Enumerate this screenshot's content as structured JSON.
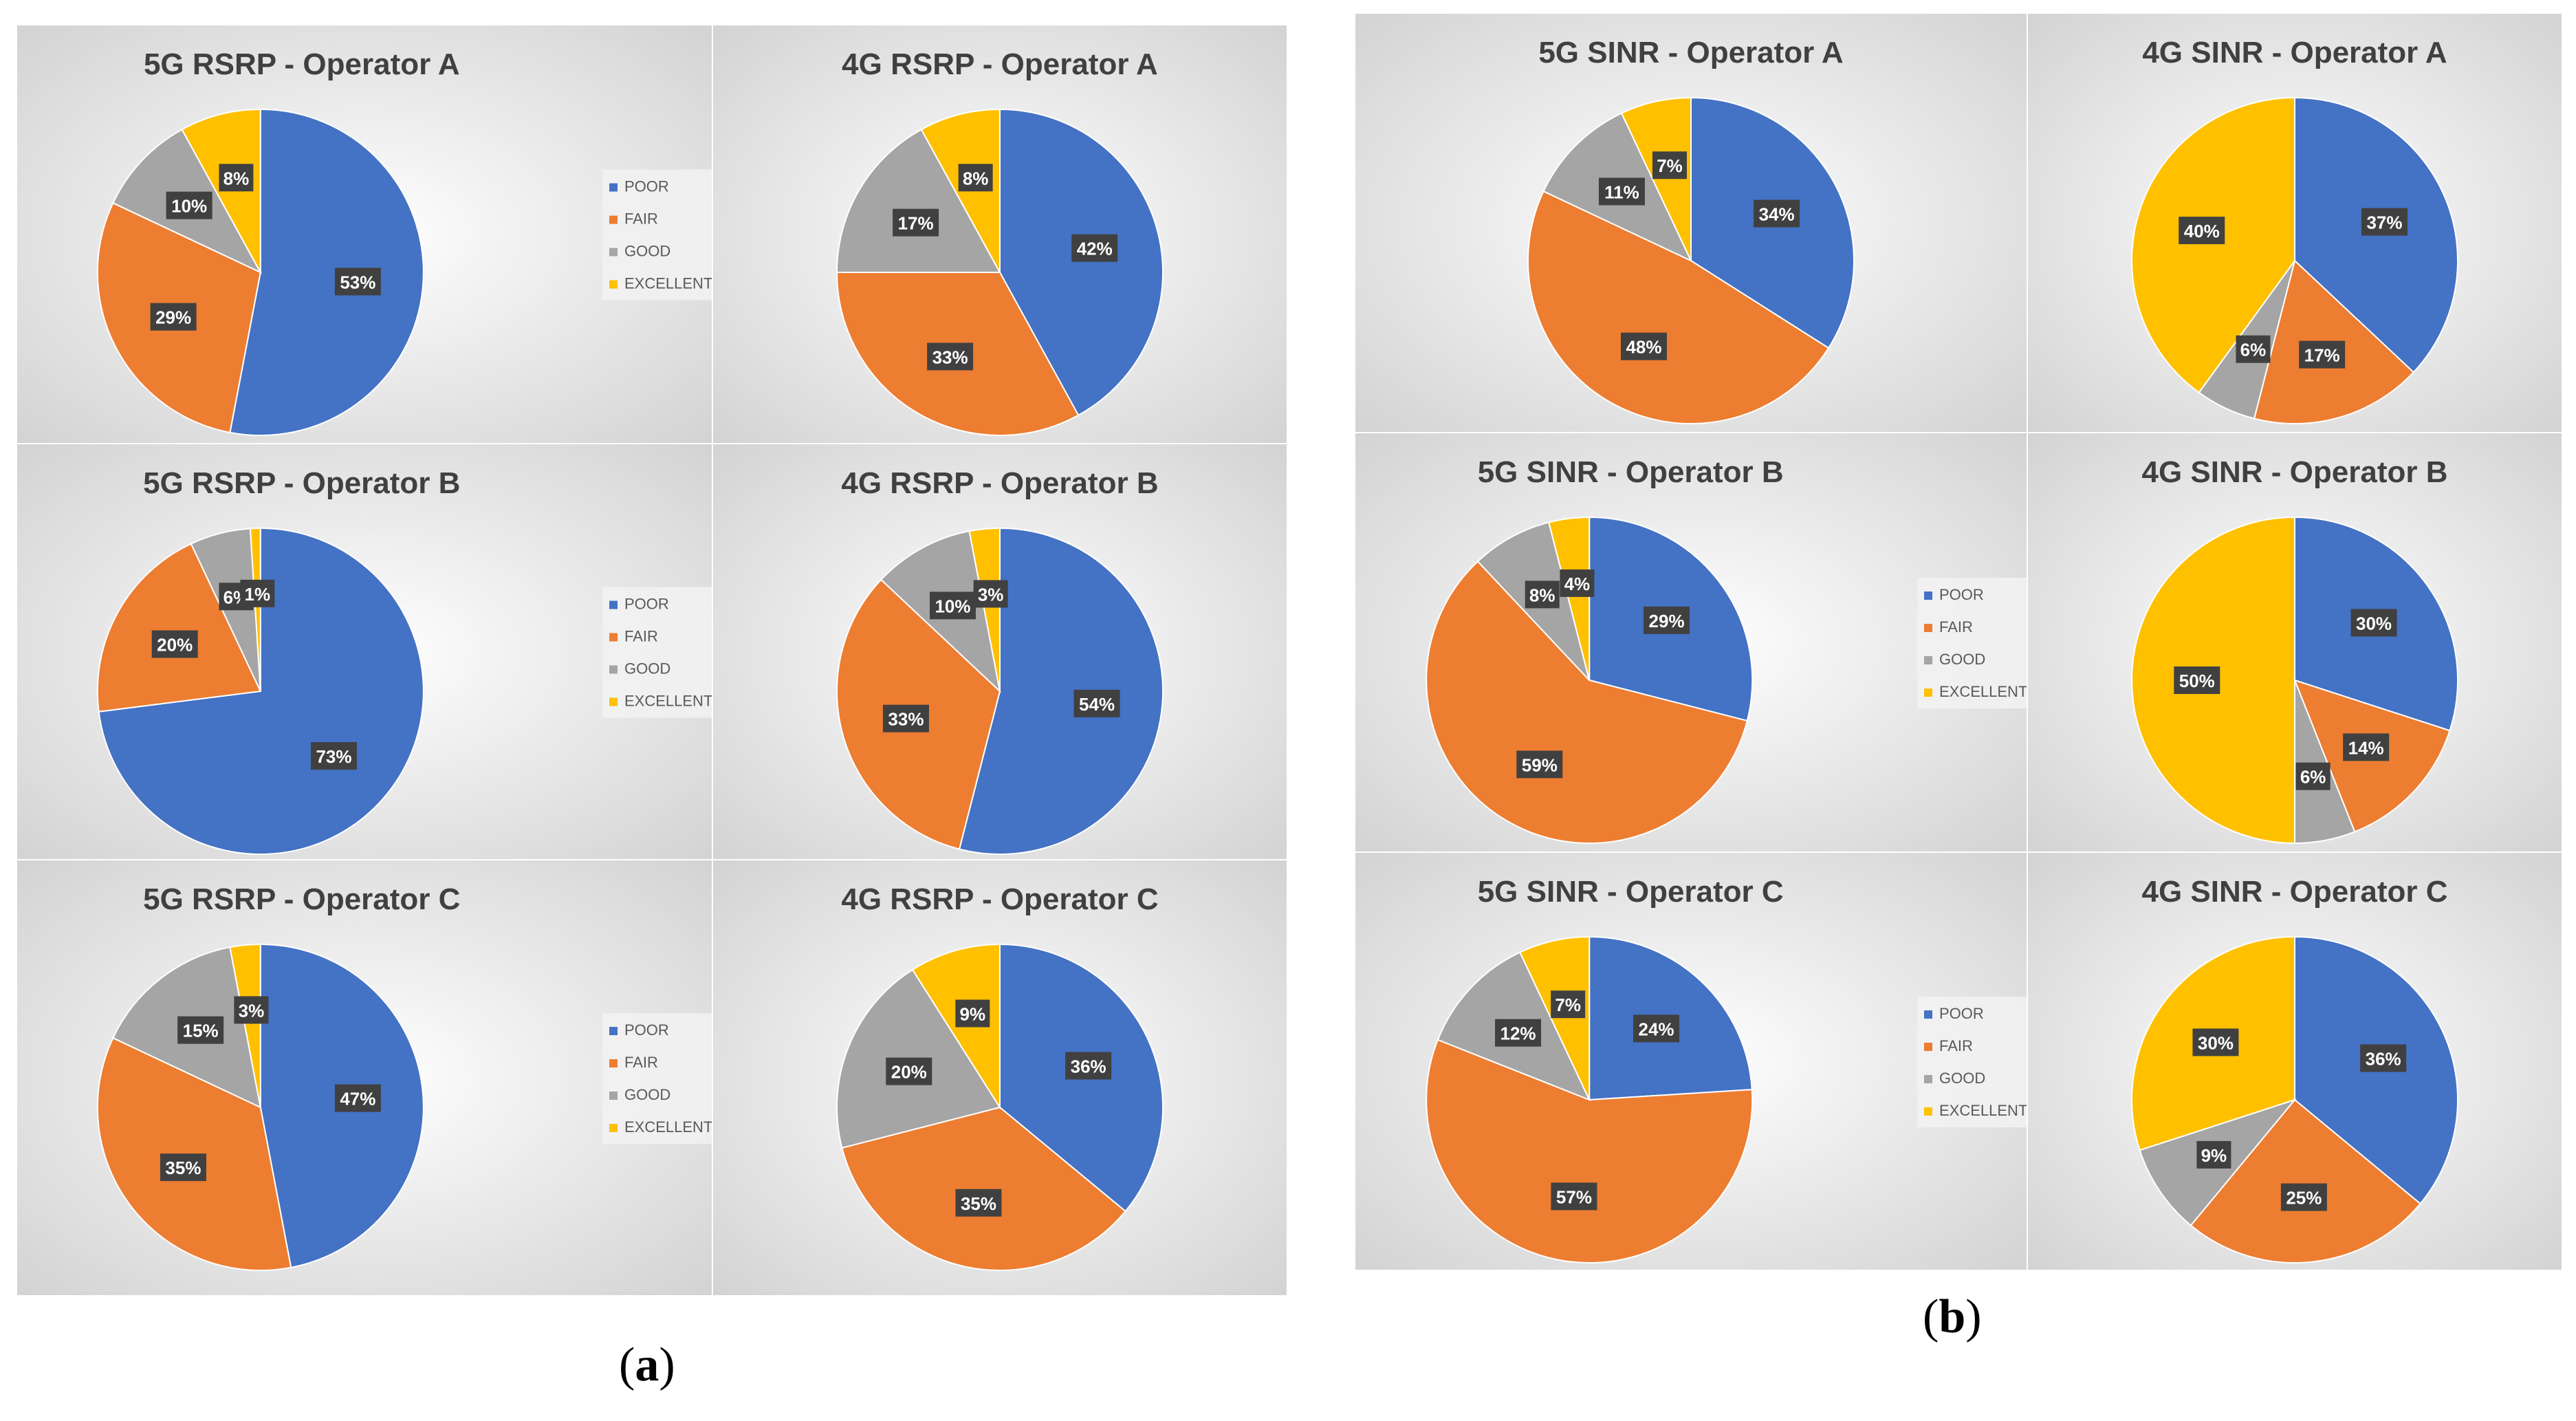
{
  "figure": {
    "caption_a": {
      "open": "(",
      "letter": "a",
      "close": ")"
    },
    "caption_b": {
      "open": "(",
      "letter": "b",
      "close": ")"
    }
  },
  "colors": {
    "POOR": "#4472C4",
    "FAIR": "#ED7D31",
    "GOOD": "#A5A5A5",
    "EXCELLENT": "#FFC000",
    "label_bg": "#404040",
    "label_text": "#FFFFFF",
    "title": "#404040",
    "panel_bg_center": "#FFFFFF",
    "panel_bg_edge": "#D0D0D0"
  },
  "legend_labels": [
    "POOR",
    "FAIR",
    "GOOD",
    "EXCELLENT"
  ],
  "chart_data": [
    {
      "type": "pie",
      "panel": "a",
      "title": "5G RSRP - Operator A",
      "labels": [
        "POOR",
        "FAIR",
        "GOOD",
        "EXCELLENT"
      ],
      "values": [
        53,
        29,
        10,
        8
      ],
      "legend": "right"
    },
    {
      "type": "pie",
      "panel": "a",
      "title": "4G RSRP - Operator A",
      "labels": [
        "POOR",
        "FAIR",
        "GOOD",
        "EXCELLENT"
      ],
      "values": [
        42,
        33,
        17,
        8
      ]
    },
    {
      "type": "pie",
      "panel": "a",
      "title": "5G RSRP - Operator B",
      "labels": [
        "POOR",
        "FAIR",
        "GOOD",
        "EXCELLENT"
      ],
      "values": [
        73,
        20,
        6,
        1
      ],
      "legend": "right"
    },
    {
      "type": "pie",
      "panel": "a",
      "title": "4G RSRP - Operator B",
      "labels": [
        "POOR",
        "FAIR",
        "GOOD",
        "EXCELLENT"
      ],
      "values": [
        54,
        33,
        10,
        3
      ]
    },
    {
      "type": "pie",
      "panel": "a",
      "title": "5G RSRP - Operator C",
      "labels": [
        "POOR",
        "FAIR",
        "GOOD",
        "EXCELLENT"
      ],
      "values": [
        47,
        35,
        15,
        3
      ],
      "legend": "right"
    },
    {
      "type": "pie",
      "panel": "a",
      "title": "4G RSRP - Operator C",
      "labels": [
        "POOR",
        "FAIR",
        "GOOD",
        "EXCELLENT"
      ],
      "values": [
        36,
        35,
        20,
        9
      ]
    },
    {
      "type": "pie",
      "panel": "b",
      "title": "5G SINR - Operator A",
      "labels": [
        "POOR",
        "FAIR",
        "GOOD",
        "EXCELLENT"
      ],
      "values": [
        34,
        48,
        11,
        7
      ]
    },
    {
      "type": "pie",
      "panel": "b",
      "title": "4G SINR - Operator A",
      "labels": [
        "POOR",
        "FAIR",
        "GOOD",
        "EXCELLENT"
      ],
      "values": [
        37,
        17,
        6,
        40
      ]
    },
    {
      "type": "pie",
      "panel": "b",
      "title": "5G SINR - Operator B",
      "labels": [
        "POOR",
        "FAIR",
        "GOOD",
        "EXCELLENT"
      ],
      "values": [
        29,
        59,
        8,
        4
      ],
      "legend": "right"
    },
    {
      "type": "pie",
      "panel": "b",
      "title": "4G SINR - Operator B",
      "labels": [
        "POOR",
        "FAIR",
        "GOOD",
        "EXCELLENT"
      ],
      "values": [
        30,
        14,
        6,
        50
      ]
    },
    {
      "type": "pie",
      "panel": "b",
      "title": "5G SINR - Operator C",
      "labels": [
        "POOR",
        "FAIR",
        "GOOD",
        "EXCELLENT"
      ],
      "values": [
        24,
        57,
        12,
        7
      ],
      "legend": "right"
    },
    {
      "type": "pie",
      "panel": "b",
      "title": "4G SINR - Operator C",
      "labels": [
        "POOR",
        "FAIR",
        "GOOD",
        "EXCELLENT"
      ],
      "values": [
        36,
        25,
        9,
        30
      ]
    }
  ]
}
